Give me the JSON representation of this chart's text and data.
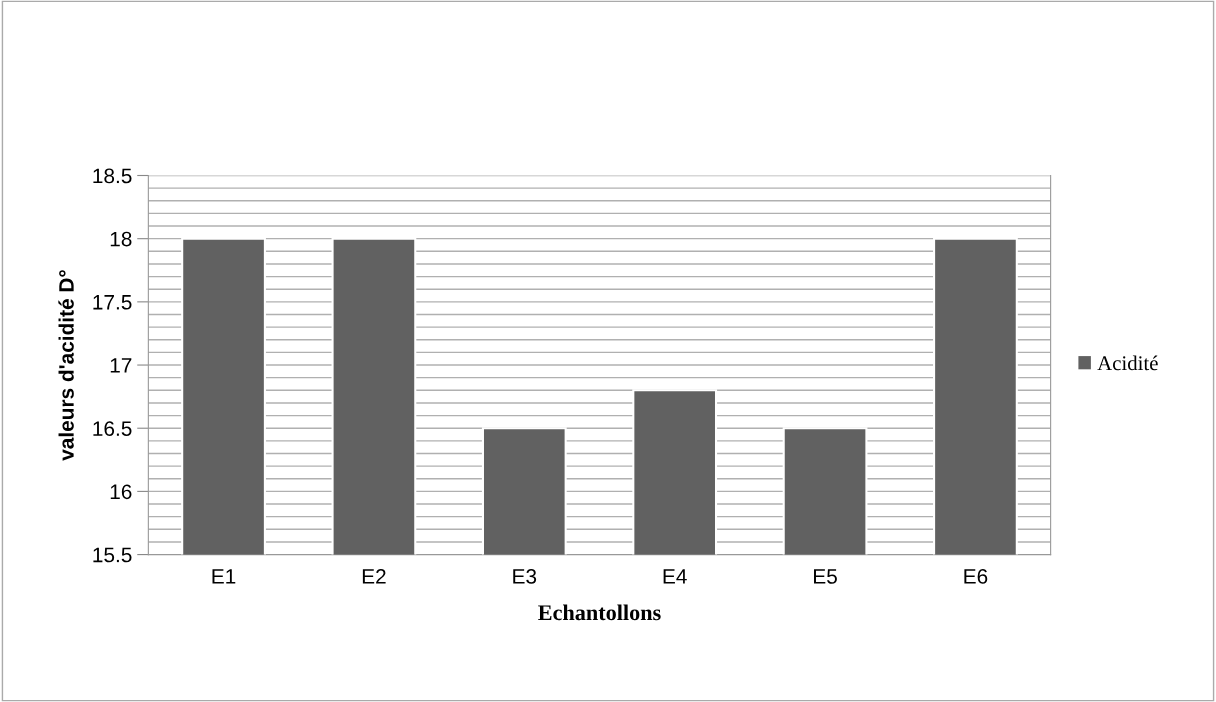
{
  "chart_data": {
    "type": "bar",
    "xlabel": "Echantollons",
    "ylabel": "valeurs d'acidité D°",
    "categories": [
      "E1",
      "E2",
      "E3",
      "E4",
      "E5",
      "E6"
    ],
    "series": [
      {
        "name": "Acidité",
        "color": "#616161",
        "values": [
          18,
          18,
          16.5,
          16.8,
          16.5,
          18
        ]
      }
    ],
    "ylim": [
      15.5,
      18.5
    ],
    "yticks": [
      15.5,
      16,
      16.5,
      17,
      17.5,
      18,
      18.5
    ],
    "grid": "y",
    "legend": "right"
  }
}
